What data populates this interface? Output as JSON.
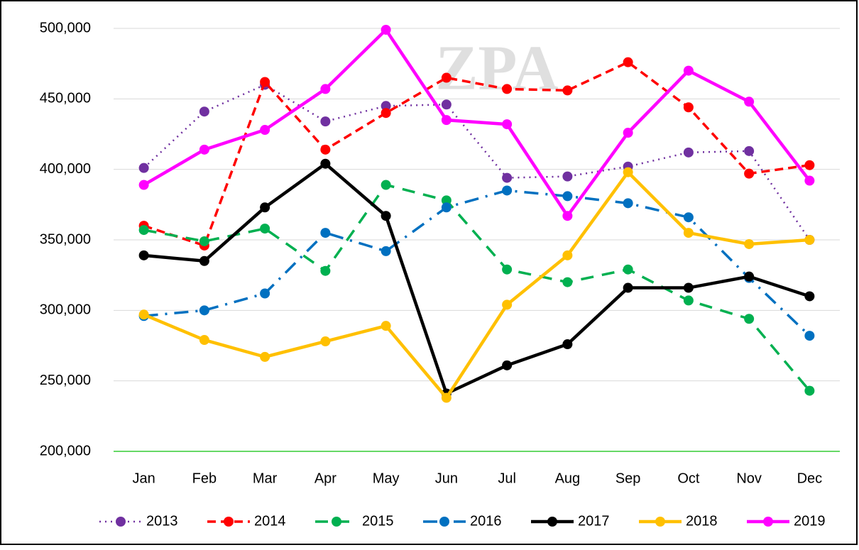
{
  "chart_data": {
    "type": "line",
    "watermark": "ZPA",
    "categories": [
      "Jan",
      "Feb",
      "Mar",
      "Apr",
      "May",
      "Jun",
      "Jul",
      "Aug",
      "Sep",
      "Oct",
      "Nov",
      "Dec"
    ],
    "ylim": [
      200000,
      500000
    ],
    "yticks": [
      {
        "value": 200000,
        "label": "200,000"
      },
      {
        "value": 250000,
        "label": "250,000"
      },
      {
        "value": 300000,
        "label": "300,000"
      },
      {
        "value": 350000,
        "label": "350,000"
      },
      {
        "value": 400000,
        "label": "400,000"
      },
      {
        "value": 450000,
        "label": "450,000"
      },
      {
        "value": 500000,
        "label": "500,000"
      }
    ],
    "grid": true,
    "legend": "bottom",
    "series": [
      {
        "name": "2013",
        "color": "#7030a0",
        "style": "dotted",
        "values": [
          401000,
          441000,
          460000,
          434000,
          445000,
          446000,
          394000,
          395000,
          402000,
          412000,
          413000,
          350000
        ]
      },
      {
        "name": "2014",
        "color": "#ff0000",
        "style": "dashed",
        "values": [
          360000,
          346000,
          462000,
          414000,
          440000,
          465000,
          457000,
          456000,
          476000,
          444000,
          397000,
          403000
        ]
      },
      {
        "name": "2015",
        "color": "#00b050",
        "style": "long-dash",
        "values": [
          357000,
          349000,
          358000,
          328000,
          389000,
          378000,
          329000,
          320000,
          329000,
          307000,
          294000,
          243000
        ]
      },
      {
        "name": "2016",
        "color": "#0070c0",
        "style": "dash-dot",
        "values": [
          296000,
          300000,
          312000,
          355000,
          342000,
          373000,
          385000,
          381000,
          376000,
          366000,
          323000,
          282000
        ]
      },
      {
        "name": "2017",
        "color": "#000000",
        "style": "solid",
        "values": [
          339000,
          335000,
          373000,
          404000,
          367000,
          241000,
          261000,
          276000,
          316000,
          316000,
          324000,
          310000
        ]
      },
      {
        "name": "2018",
        "color": "#ffc000",
        "style": "solid",
        "values": [
          297000,
          279000,
          267000,
          278000,
          289000,
          238000,
          304000,
          339000,
          398000,
          355000,
          347000,
          350000
        ]
      },
      {
        "name": "2019",
        "color": "#ff00ff",
        "style": "solid",
        "values": [
          389000,
          414000,
          428000,
          457000,
          499000,
          435000,
          432000,
          367000,
          426000,
          470000,
          448000,
          392000
        ]
      }
    ]
  }
}
